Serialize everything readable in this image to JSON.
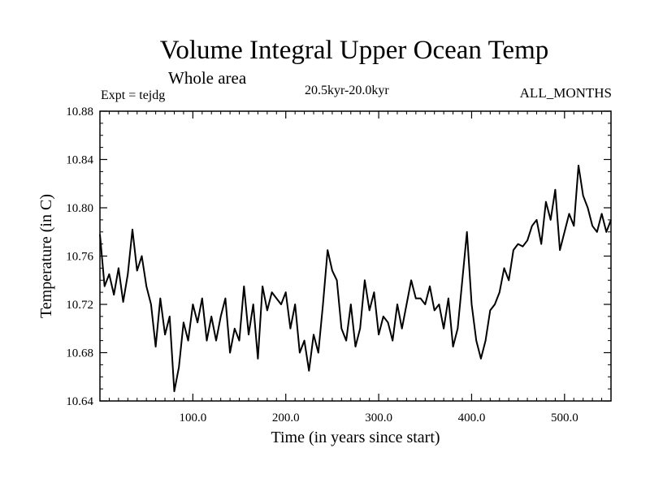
{
  "chart_data": {
    "type": "line",
    "title": "Volume Integral Upper Ocean Temp",
    "subtitle": "Whole area",
    "expt_label": "Expt = tejdg",
    "period_label": "20.5kyr-20.0kyr",
    "months_label": "ALL_MONTHS",
    "xlabel": "Time (in years since start)",
    "ylabel": "Temperature (in C)",
    "xlim": [
      0,
      550
    ],
    "ylim": [
      10.64,
      10.88
    ],
    "x_ticks": [
      100,
      200,
      300,
      400,
      500
    ],
    "x_tick_labels": [
      "100.0",
      "200.0",
      "300.0",
      "400.0",
      "500.0"
    ],
    "y_ticks": [
      10.64,
      10.68,
      10.72,
      10.76,
      10.8,
      10.84,
      10.88
    ],
    "y_tick_labels": [
      "10.64",
      "10.68",
      "10.72",
      "10.76",
      "10.80",
      "10.84",
      "10.88"
    ],
    "series": [
      {
        "name": "tejdg",
        "x": [
          0,
          5,
          10,
          15,
          20,
          25,
          30,
          35,
          40,
          45,
          50,
          55,
          60,
          65,
          70,
          75,
          80,
          85,
          90,
          95,
          100,
          105,
          110,
          115,
          120,
          125,
          130,
          135,
          140,
          145,
          150,
          155,
          160,
          165,
          170,
          175,
          180,
          185,
          190,
          195,
          200,
          205,
          210,
          215,
          220,
          225,
          230,
          235,
          240,
          245,
          250,
          255,
          260,
          265,
          270,
          275,
          280,
          285,
          290,
          295,
          300,
          305,
          310,
          315,
          320,
          325,
          330,
          335,
          340,
          345,
          350,
          355,
          360,
          365,
          370,
          375,
          380,
          385,
          390,
          395,
          400,
          405,
          410,
          415,
          420,
          425,
          430,
          435,
          440,
          445,
          450,
          455,
          460,
          465,
          470,
          475,
          480,
          485,
          490,
          495,
          500,
          505,
          510,
          515,
          520,
          525,
          530,
          535,
          540,
          545,
          550
        ],
        "values": [
          10.778,
          10.735,
          10.745,
          10.728,
          10.75,
          10.722,
          10.745,
          10.782,
          10.748,
          10.76,
          10.735,
          10.72,
          10.685,
          10.725,
          10.695,
          10.71,
          10.648,
          10.668,
          10.705,
          10.69,
          10.72,
          10.705,
          10.725,
          10.69,
          10.71,
          10.69,
          10.71,
          10.725,
          10.68,
          10.7,
          10.69,
          10.735,
          10.695,
          10.72,
          10.675,
          10.735,
          10.715,
          10.73,
          10.725,
          10.72,
          10.73,
          10.7,
          10.72,
          10.68,
          10.69,
          10.665,
          10.695,
          10.68,
          10.72,
          10.765,
          10.748,
          10.74,
          10.7,
          10.69,
          10.72,
          10.685,
          10.7,
          10.74,
          10.715,
          10.73,
          10.695,
          10.71,
          10.705,
          10.69,
          10.72,
          10.7,
          10.72,
          10.74,
          10.725,
          10.725,
          10.72,
          10.735,
          10.715,
          10.72,
          10.7,
          10.725,
          10.685,
          10.7,
          10.74,
          10.78,
          10.72,
          10.69,
          10.675,
          10.69,
          10.715,
          10.72,
          10.73,
          10.75,
          10.74,
          10.765,
          10.77,
          10.768,
          10.773,
          10.785,
          10.79,
          10.77,
          10.805,
          10.79,
          10.815,
          10.765,
          10.78,
          10.795,
          10.785,
          10.835,
          10.81,
          10.8,
          10.785,
          10.78,
          10.795,
          10.78,
          10.79
        ]
      }
    ]
  }
}
